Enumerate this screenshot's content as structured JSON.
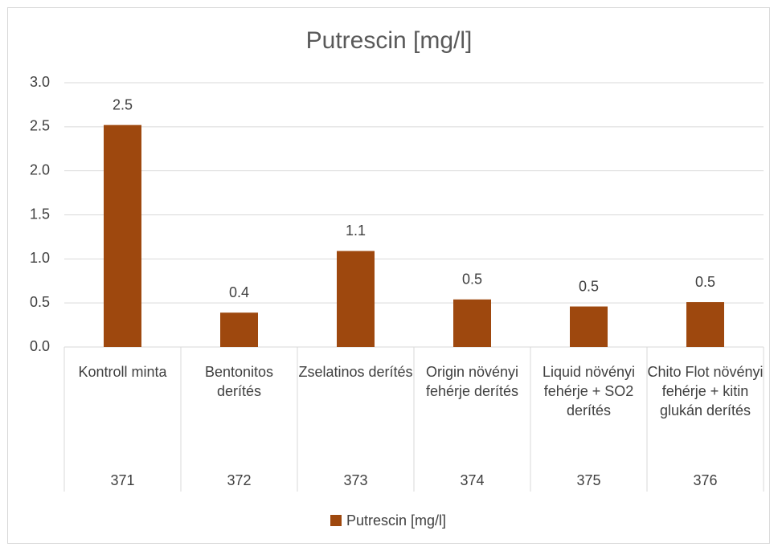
{
  "chart_data": {
    "type": "bar",
    "title": "Putrescin [mg/l]",
    "categories": [
      "Kontroll minta",
      "Bentonitos derítés",
      "Zselatinos derítés",
      "Origin növényi fehérje derítés",
      "Liquid növényi fehérje + SO2 derítés",
      "Chito Flot növényi fehérje + kitin glukán derítés"
    ],
    "category_codes": [
      "371",
      "372",
      "373",
      "374",
      "375",
      "376"
    ],
    "series": [
      {
        "name": "Putrescin [mg/l]",
        "color": "#9e480e",
        "values": [
          2.52,
          0.39,
          1.09,
          0.54,
          0.46,
          0.51
        ],
        "value_labels": [
          "2.5",
          "0.4",
          "1.1",
          "0.5",
          "0.5",
          "0.5"
        ]
      }
    ],
    "ylim": [
      0,
      3
    ],
    "yticks": [
      {
        "value": 0,
        "label": "0.0"
      },
      0.5,
      {
        "value": 1,
        "label": "1.0"
      },
      1.5,
      {
        "value": 2,
        "label": "2.0"
      },
      2.5,
      {
        "value": 3,
        "label": "3.0"
      }
    ],
    "grid": true,
    "legend": "bottom"
  }
}
